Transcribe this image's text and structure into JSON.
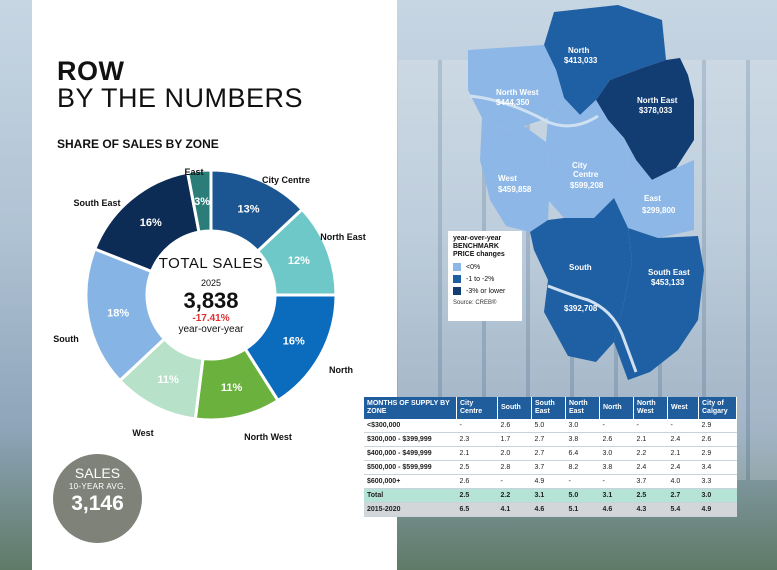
{
  "header": {
    "line1": "ROW",
    "line2": "BY THE NUMBERS",
    "chart_title": "SHARE OF SALES BY ZONE"
  },
  "chart_data": {
    "type": "pie",
    "title": "SHARE OF SALES BY ZONE",
    "categories": [
      "City Centre",
      "North East",
      "North",
      "North West",
      "West",
      "South",
      "South East",
      "East"
    ],
    "values": [
      13,
      12,
      16,
      11,
      11,
      18,
      16,
      3
    ],
    "labels": [
      "13%",
      "12%",
      "16%",
      "11%",
      "11%",
      "18%",
      "16%",
      "3%"
    ],
    "colors": [
      "#1b5693",
      "#6ec8c8",
      "#0b6bbd",
      "#6ab13e",
      "#b7e2c9",
      "#85b4e5",
      "#0c2c55",
      "#2b7d7a"
    ]
  },
  "center": {
    "label": "TOTAL SALES",
    "year": "2025",
    "value": "3,838",
    "change": "-17.41%",
    "change_caption": "year-over-year"
  },
  "average": {
    "label": "SALES",
    "sublabel": "10-YEAR AVG.",
    "value": "3,146"
  },
  "map": {
    "regions": [
      {
        "name": "North",
        "price": "$413,033",
        "color": "#1f5fa4"
      },
      {
        "name": "North West",
        "price": "$444,350",
        "color": "#8db7e6"
      },
      {
        "name": "North East",
        "price": "$378,033",
        "color": "#123d72"
      },
      {
        "name": "West",
        "price": "$459,858",
        "color": "#8db7e6"
      },
      {
        "name": "City Centre",
        "price": "$599,208",
        "color": "#8db7e6"
      },
      {
        "name": "East",
        "price": "$299,800",
        "color": "#8db7e6"
      },
      {
        "name": "South",
        "price": "$392,708",
        "color": "#1f5fa4"
      },
      {
        "name": "South East",
        "price": "$453,133",
        "color": "#1f5fa4"
      }
    ],
    "legend": {
      "title": "year-over-year BENCHMARK PRICE changes",
      "items": [
        {
          "label": "<0%",
          "color": "#8db7e6"
        },
        {
          "label": "-1 to -2%",
          "color": "#1f5fa4"
        },
        {
          "label": "-3% or lower",
          "color": "#123d72"
        }
      ],
      "source": "Source: CREB®"
    }
  },
  "supply_table": {
    "headers": [
      "MONTHS OF SUPPLY BY ZONE",
      "City Centre",
      "South",
      "South East",
      "North East",
      "North",
      "North West",
      "West",
      "City of Calgary"
    ],
    "rows": [
      [
        "<$300,000",
        "-",
        "2.6",
        "5.0",
        "3.0",
        "-",
        "-",
        "-",
        "2.9"
      ],
      [
        "$300,000 - $399,999",
        "2.3",
        "1.7",
        "2.7",
        "3.8",
        "2.6",
        "2.1",
        "2.4",
        "2.6"
      ],
      [
        "$400,000 - $499,999",
        "2.1",
        "2.0",
        "2.7",
        "6.4",
        "3.0",
        "2.2",
        "2.1",
        "2.9"
      ],
      [
        "$500,000 - $599,999",
        "2.5",
        "2.8",
        "3.7",
        "8.2",
        "3.8",
        "2.4",
        "2.4",
        "3.4"
      ],
      [
        "$600,000+",
        "2.6",
        "-",
        "4.9",
        "-",
        "-",
        "3.7",
        "4.0",
        "3.3"
      ]
    ],
    "total": [
      "Total",
      "2.5",
      "2.2",
      "3.1",
      "5.0",
      "3.1",
      "2.5",
      "2.7",
      "3.0"
    ],
    "history": [
      "2015-2020",
      "6.5",
      "4.1",
      "4.6",
      "5.1",
      "4.6",
      "4.3",
      "5.4",
      "4.9"
    ]
  }
}
